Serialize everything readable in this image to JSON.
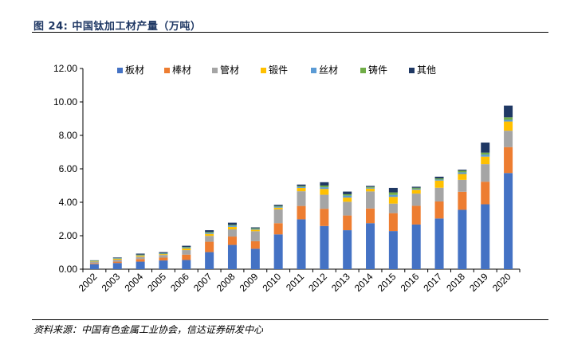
{
  "figure": {
    "title": "图  24:  中国钛加工材产量（万吨）",
    "source": "资料来源：中国有色金属工业协会，信达证券研发中心"
  },
  "chart_data": {
    "type": "bar",
    "stacked": true,
    "categories": [
      "2002",
      "2003",
      "2004",
      "2005",
      "2006",
      "2007",
      "2008",
      "2009",
      "2010",
      "2011",
      "2012",
      "2013",
      "2014",
      "2015",
      "2016",
      "2017",
      "2018",
      "2019",
      "2020"
    ],
    "ylim": [
      0,
      12
    ],
    "yticks": [
      "0.00",
      "2.00",
      "4.00",
      "6.00",
      "8.00",
      "10.00",
      "12.00"
    ],
    "ytick_values": [
      0,
      2,
      4,
      6,
      8,
      10,
      12
    ],
    "legend_position": "top",
    "grid": false,
    "series": [
      {
        "name": "板材",
        "color": "#4472c4",
        "values": [
          0.3,
          0.37,
          0.45,
          0.52,
          0.55,
          1.02,
          1.45,
          1.22,
          2.08,
          2.98,
          2.58,
          2.33,
          2.75,
          2.28,
          2.67,
          3.03,
          3.55,
          3.88,
          5.75
        ]
      },
      {
        "name": "棒材",
        "color": "#ed7d31",
        "values": [
          0.05,
          0.08,
          0.15,
          0.17,
          0.32,
          0.62,
          0.5,
          0.45,
          0.67,
          0.8,
          1.03,
          0.88,
          0.88,
          1.07,
          1.12,
          1.02,
          1.08,
          1.35,
          1.55
        ]
      },
      {
        "name": "管材",
        "color": "#a5a5a5",
        "values": [
          0.08,
          0.12,
          0.15,
          0.16,
          0.27,
          0.35,
          0.43,
          0.6,
          0.83,
          0.88,
          0.84,
          0.82,
          1.02,
          0.57,
          0.73,
          0.82,
          0.71,
          1.05,
          0.98
        ]
      },
      {
        "name": "锻件",
        "color": "#ffc000",
        "values": [
          0.03,
          0.05,
          0.06,
          0.05,
          0.1,
          0.12,
          0.15,
          0.09,
          0.1,
          0.2,
          0.35,
          0.25,
          0.17,
          0.4,
          0.23,
          0.43,
          0.35,
          0.45,
          0.55
        ]
      },
      {
        "name": "丝材",
        "color": "#5b9bd5",
        "values": [
          0.02,
          0.03,
          0.03,
          0.03,
          0.05,
          0.06,
          0.07,
          0.05,
          0.06,
          0.06,
          0.1,
          0.12,
          0.05,
          0.12,
          0.06,
          0.06,
          0.1,
          0.12,
          0.1
        ]
      },
      {
        "name": "铸件",
        "color": "#70ad47",
        "values": [
          0.03,
          0.02,
          0.03,
          0.03,
          0.04,
          0.05,
          0.05,
          0.04,
          0.04,
          0.05,
          0.1,
          0.08,
          0.05,
          0.15,
          0.06,
          0.07,
          0.1,
          0.12,
          0.15
        ]
      },
      {
        "name": "其他",
        "color": "#1f3864",
        "values": [
          0.02,
          0.03,
          0.06,
          0.06,
          0.07,
          0.11,
          0.13,
          0.05,
          0.07,
          0.09,
          0.2,
          0.16,
          0.06,
          0.27,
          0.06,
          0.1,
          0.06,
          0.6,
          0.7
        ]
      }
    ]
  }
}
